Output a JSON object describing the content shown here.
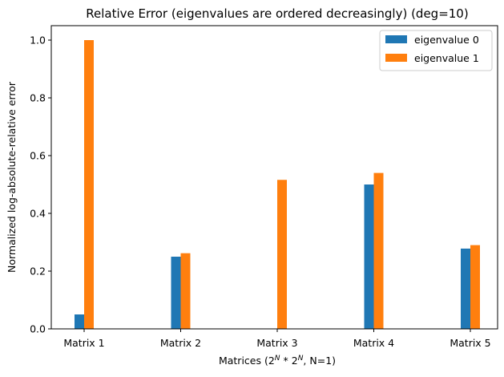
{
  "chart_data": {
    "type": "bar",
    "title": "Relative Error (eigenvalues are ordered decreasingly) (deg=10)",
    "xlabel_prefix": "Matrices (2",
    "xlabel_sup1": "N",
    "xlabel_mid": " * 2",
    "xlabel_sup2": "N",
    "xlabel_suffix": ", N=1)",
    "ylabel": "Normalized log-absolute-relative error",
    "categories": [
      "Matrix 1",
      "Matrix 2",
      "Matrix 3",
      "Matrix 4",
      "Matrix 5"
    ],
    "series": [
      {
        "name": "eigenvalue 0",
        "color": "#1f77b4",
        "values": [
          0.05,
          0.25,
          0.0,
          0.5,
          0.278
        ]
      },
      {
        "name": "eigenvalue 1",
        "color": "#ff7f0e",
        "values": [
          1.0,
          0.262,
          0.516,
          0.54,
          0.29
        ]
      }
    ],
    "ylim": [
      0,
      1.05
    ],
    "yticks": [
      0.0,
      0.2,
      0.4,
      0.6,
      0.8,
      1.0
    ],
    "ytick_labels": [
      "0.0",
      "0.2",
      "0.4",
      "0.6",
      "0.8",
      "1.0"
    ],
    "grid": false,
    "legend_position": "top-right"
  }
}
